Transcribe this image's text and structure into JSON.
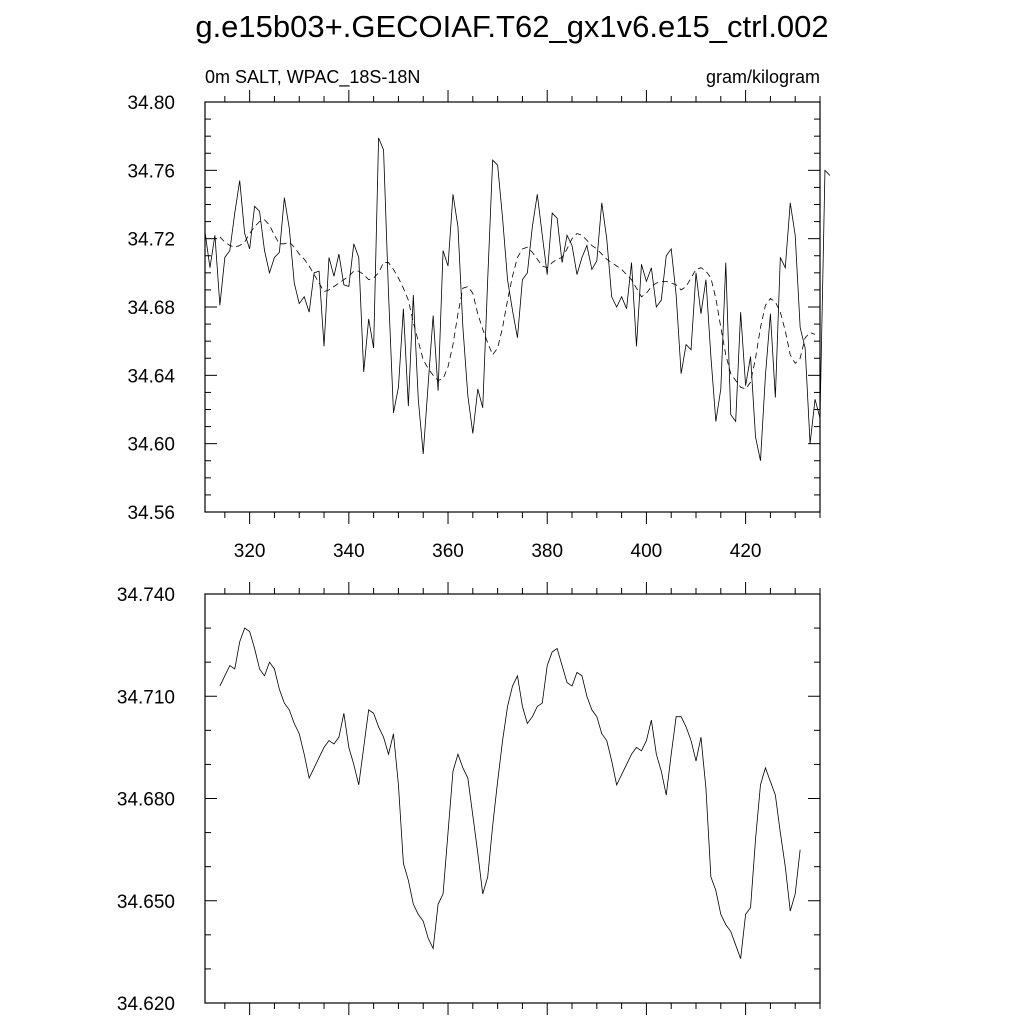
{
  "chart": {
    "title": "g.e15b03+.GECOIAF.T62_gx1v6.e15_ctrl.002",
    "left_subtitle": "0m SALT, WPAC_18S-18N",
    "right_subtitle": "gram/kilogram"
  },
  "chart_data": [
    {
      "type": "line",
      "title": "",
      "xlabel": "",
      "ylabel": "",
      "xlim": [
        311,
        435
      ],
      "ylim": [
        34.56,
        34.8
      ],
      "xticks": [
        320,
        340,
        360,
        380,
        400,
        420
      ],
      "xtick_labels": [
        "320",
        "340",
        "360",
        "380",
        "400",
        "420"
      ],
      "yticks": [
        34.56,
        34.6,
        34.64,
        34.68,
        34.72,
        34.76,
        34.8
      ],
      "ytick_labels": [
        "34.56",
        "34.60",
        "34.64",
        "34.68",
        "34.72",
        "34.76",
        "34.80"
      ],
      "grid": false,
      "x_start": 311,
      "x_step": 1,
      "series": [
        {
          "name": "",
          "style": "solid",
          "values": [
            34.724,
            34.703,
            34.722,
            34.681,
            34.709,
            34.713,
            34.735,
            34.754,
            34.723,
            34.714,
            34.739,
            34.736,
            34.713,
            34.7,
            34.709,
            34.712,
            34.744,
            34.726,
            34.694,
            34.682,
            34.686,
            34.677,
            34.7,
            34.701,
            34.657,
            34.709,
            34.698,
            34.711,
            34.693,
            34.692,
            34.717,
            34.709,
            34.642,
            34.673,
            34.656,
            34.779,
            34.772,
            34.688,
            34.618,
            34.633,
            34.679,
            34.622,
            34.687,
            34.626,
            34.594,
            34.635,
            34.675,
            34.631,
            34.713,
            34.704,
            34.746,
            34.727,
            34.668,
            34.628,
            34.606,
            34.632,
            34.621,
            34.696,
            34.766,
            34.763,
            34.732,
            34.696,
            34.678,
            34.662,
            34.696,
            34.7,
            34.727,
            34.746,
            34.722,
            34.699,
            34.735,
            34.732,
            34.706,
            34.722,
            34.716,
            34.699,
            34.709,
            34.716,
            34.702,
            34.707,
            34.741,
            34.72,
            34.686,
            34.68,
            34.686,
            34.679,
            34.706,
            34.657,
            34.705,
            34.695,
            34.703,
            34.68,
            34.684,
            34.71,
            34.714,
            34.687,
            34.641,
            34.658,
            34.655,
            34.7,
            34.676,
            34.696,
            34.651,
            34.613,
            34.632,
            34.706,
            34.617,
            34.613,
            34.677,
            34.634,
            34.651,
            34.604,
            34.59,
            34.64,
            34.676,
            34.627,
            34.709,
            34.703,
            34.741,
            34.722,
            34.668,
            34.656,
            34.6,
            34.626,
            34.615,
            34.76,
            34.757
          ],
          "x_start": 311
        },
        {
          "name": "",
          "style": "dashed",
          "values": [
            34.721,
            34.718,
            34.716,
            34.715,
            34.716,
            34.718,
            34.723,
            34.727,
            34.73,
            34.731,
            34.728,
            34.722,
            34.717,
            34.717,
            34.718,
            34.715,
            34.711,
            34.708,
            34.704,
            34.699,
            34.694,
            34.689,
            34.69,
            34.692,
            34.694,
            34.696,
            34.698,
            34.701,
            34.701,
            34.699,
            34.696,
            34.697,
            34.7,
            34.706,
            34.706,
            34.702,
            34.697,
            34.691,
            34.684,
            34.671,
            34.66,
            34.649,
            34.644,
            34.64,
            34.637,
            34.638,
            34.645,
            34.658,
            34.676,
            34.691,
            34.692,
            34.688,
            34.676,
            34.667,
            34.659,
            34.652,
            34.656,
            34.668,
            34.684,
            34.698,
            34.709,
            34.714,
            34.715,
            34.712,
            34.708,
            34.704,
            34.703,
            34.706,
            34.708,
            34.709,
            34.714,
            34.72,
            34.723,
            34.722,
            34.719,
            34.716,
            34.714,
            34.711,
            34.708,
            34.706,
            34.704,
            34.702,
            34.699,
            34.696,
            34.691,
            34.686,
            34.688,
            34.692,
            34.694,
            34.695,
            34.695,
            34.694,
            34.693,
            34.69,
            34.692,
            34.697,
            34.702,
            34.703,
            34.701,
            34.697,
            34.685,
            34.668,
            34.652,
            34.641,
            34.637,
            34.633,
            34.632,
            34.636,
            34.65,
            34.668,
            34.681,
            34.685,
            34.683,
            34.677,
            34.666,
            34.652,
            34.647,
            34.65,
            34.662,
            34.665,
            34.664
          ],
          "x_start": 314
        }
      ]
    },
    {
      "type": "line",
      "title": "",
      "xlabel": "",
      "ylabel": "",
      "xlim": [
        311,
        435
      ],
      "ylim": [
        34.62,
        34.74
      ],
      "xticks": [
        320,
        340,
        360,
        380,
        400,
        420
      ],
      "xtick_labels": [],
      "yticks": [
        34.62,
        34.65,
        34.68,
        34.71,
        34.74
      ],
      "ytick_labels": [
        "34.620",
        "34.650",
        "34.680",
        "34.710",
        "34.740"
      ],
      "grid": false,
      "series": [
        {
          "name": "",
          "style": "solid",
          "x_start": 314,
          "x_step": 1,
          "values": [
            34.713,
            34.716,
            34.719,
            34.718,
            34.726,
            34.73,
            34.729,
            34.724,
            34.718,
            34.716,
            34.72,
            34.718,
            34.712,
            34.708,
            34.706,
            34.702,
            34.699,
            34.693,
            34.686,
            34.689,
            34.692,
            34.695,
            34.697,
            34.696,
            34.698,
            34.705,
            34.695,
            34.69,
            34.684,
            34.695,
            34.706,
            34.705,
            34.701,
            34.698,
            34.693,
            34.699,
            34.684,
            34.661,
            34.656,
            34.649,
            34.646,
            34.644,
            34.639,
            34.636,
            34.649,
            34.652,
            34.67,
            34.688,
            34.693,
            34.689,
            34.686,
            34.675,
            34.664,
            34.652,
            34.657,
            34.672,
            34.685,
            34.697,
            34.707,
            34.713,
            34.716,
            34.707,
            34.702,
            34.704,
            34.707,
            34.708,
            34.719,
            34.723,
            34.724,
            34.719,
            34.714,
            34.713,
            34.717,
            34.716,
            34.71,
            34.706,
            34.704,
            34.699,
            34.697,
            34.691,
            34.684,
            34.687,
            34.69,
            34.693,
            34.695,
            34.694,
            34.697,
            34.703,
            34.693,
            34.688,
            34.681,
            34.693,
            34.704,
            34.704,
            34.701,
            34.697,
            34.691,
            34.698,
            34.683,
            34.657,
            34.653,
            34.646,
            34.643,
            34.641,
            34.637,
            34.633,
            34.646,
            34.648,
            34.668,
            34.684,
            34.689,
            34.685,
            34.681,
            34.67,
            34.66,
            34.647,
            34.652,
            34.665
          ]
        }
      ]
    }
  ]
}
